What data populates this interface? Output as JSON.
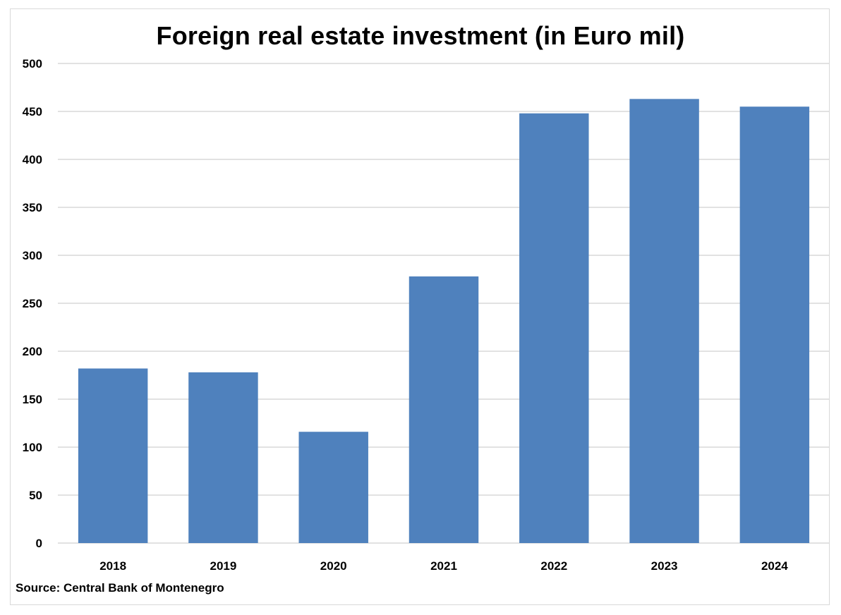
{
  "chart_data": {
    "type": "bar",
    "title": "Foreign real estate investment (in Euro mil)",
    "categories": [
      "2018",
      "2019",
      "2020",
      "2021",
      "2022",
      "2023",
      "2024"
    ],
    "values": [
      182,
      178,
      116,
      278,
      448,
      463,
      455
    ],
    "xlabel": "",
    "ylabel": "",
    "ylim": [
      0,
      500
    ],
    "yticks": [
      "0",
      "50",
      "100",
      "150",
      "200",
      "250",
      "300",
      "350",
      "400",
      "450",
      "500"
    ],
    "grid": true,
    "legend": "none",
    "bar_color": "#4F81BD",
    "grid_color": "#d9d9d9"
  },
  "source": "Source: Central Bank of Montenegro"
}
